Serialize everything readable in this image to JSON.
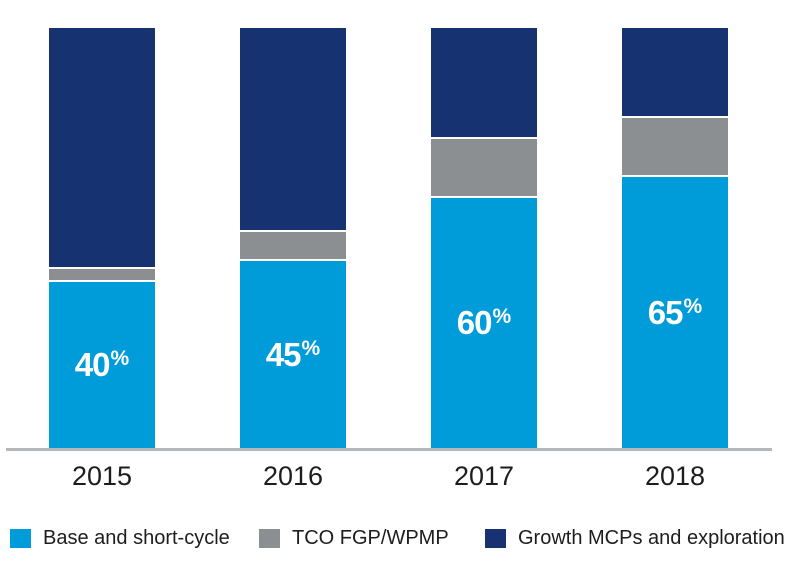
{
  "background_color": "#ffffff",
  "chart_data": {
    "type": "bar",
    "stacked": true,
    "orientation": "vertical",
    "title": "",
    "xlabel": "",
    "ylabel": "",
    "ylim": [
      0,
      100
    ],
    "grid": false,
    "legend_position": "bottom",
    "categories": [
      "2015",
      "2016",
      "2017",
      "2018"
    ],
    "series": [
      {
        "name": "Base and short-cycle",
        "color": "#009BD9",
        "values": [
          40,
          45,
          60,
          65
        ]
      },
      {
        "name": "TCO FGP/WPMP",
        "color": "#8B8F92",
        "values": [
          3,
          7,
          14,
          14
        ]
      },
      {
        "name": "Growth MCPs and exploration",
        "color": "#163270",
        "values": [
          57,
          48,
          26,
          21
        ]
      }
    ],
    "bar_labels": [
      "40",
      "45",
      "60",
      "65"
    ],
    "bar_label_suffix": "%",
    "bar_label_color": "#ffffff",
    "axis_line_color": "#B4B7B9",
    "text_color": "#1D1D1D"
  }
}
